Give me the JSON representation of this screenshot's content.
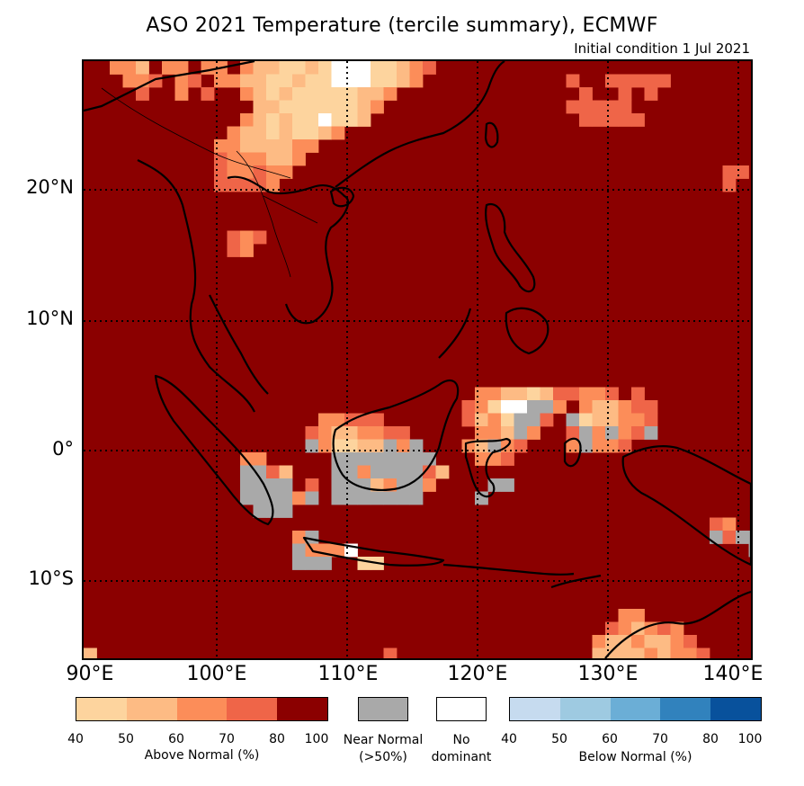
{
  "title": "ASO 2021 Temperature (tercile summary), ECMWF",
  "subtitle": "Initial condition 1 Jul 2021",
  "lat_labels": [
    "20°N",
    "10°N",
    "0°",
    "10°S"
  ],
  "lon_labels": [
    "90°E",
    "100°E",
    "110°E",
    "120°E",
    "130°E",
    "140°E"
  ],
  "colors": {
    "above": [
      "#fdd49e",
      "#fdbb84",
      "#fc8d59",
      "#ef6548",
      "#8b0000"
    ],
    "near_normal": "#a9a9a9",
    "no_dominant": "#ffffff",
    "below": [
      "#c6dbef",
      "#9ecae1",
      "#6baed6",
      "#3182bd",
      "#08519c"
    ]
  },
  "legend": {
    "above_ticks": [
      "40",
      "50",
      "60",
      "70",
      "80",
      "100"
    ],
    "above_caption": "Above Normal (%)",
    "near_line1": "Near Normal",
    "near_line2": "(>50%)",
    "nodom_line1": "No",
    "nodom_line2": "dominant",
    "below_ticks": [
      "40",
      "50",
      "60",
      "70",
      "80",
      "100"
    ],
    "below_caption": "Below Normal (%)"
  }
}
